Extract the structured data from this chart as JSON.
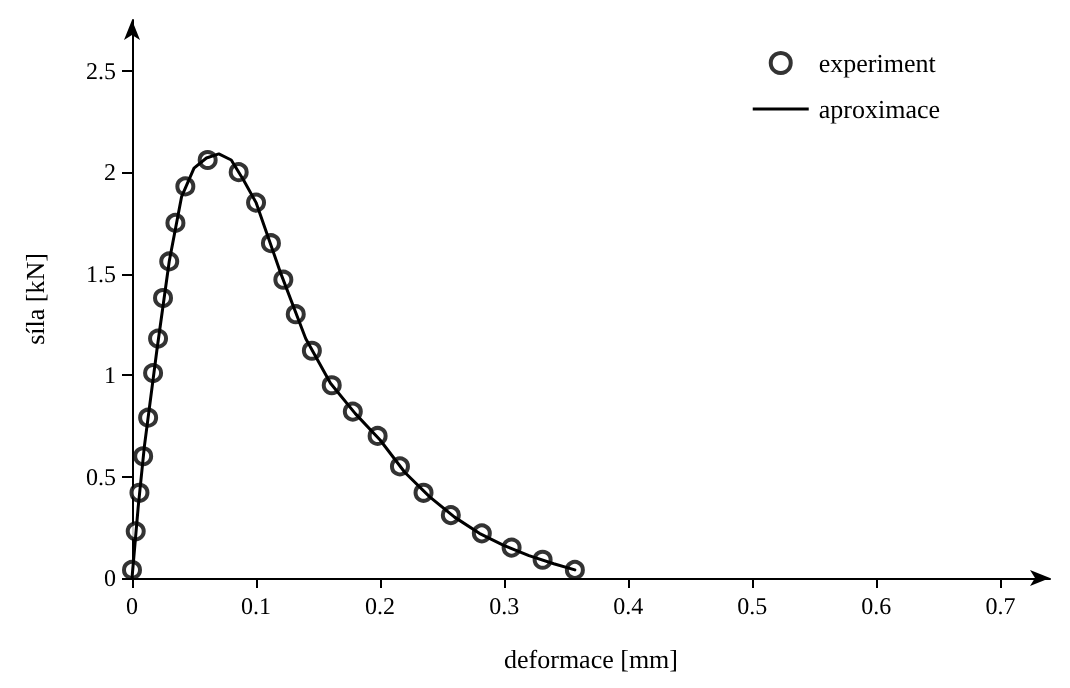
{
  "chart_data": {
    "type": "scatter",
    "xlabel": "deformace [mm]",
    "ylabel": "síla [kN]",
    "xlim": [
      0,
      0.74
    ],
    "xticks": [
      0,
      0.1,
      0.2,
      0.3,
      0.4,
      0.5,
      0.6,
      0.7
    ],
    "ylim": [
      0,
      2.75
    ],
    "yticks": [
      0,
      0.5,
      1,
      1.5,
      2,
      2.5
    ],
    "grid": false,
    "legend": "top right",
    "series": [
      {
        "name": "experiment",
        "marker": "circle",
        "color": "#000000",
        "x": [
          0,
          0.003,
          0.006,
          0.009,
          0.013,
          0.017,
          0.021,
          0.025,
          0.03,
          0.035,
          0.043,
          0.061,
          0.086,
          0.1,
          0.112,
          0.122,
          0.132,
          0.145,
          0.161,
          0.178,
          0.198,
          0.216,
          0.235,
          0.257,
          0.282,
          0.306,
          0.331,
          0.357
        ],
        "values": [
          0.04,
          0.23,
          0.42,
          0.6,
          0.79,
          1.01,
          1.18,
          1.38,
          1.56,
          1.75,
          1.93,
          2.06,
          2.0,
          1.85,
          1.65,
          1.47,
          1.3,
          1.12,
          0.95,
          0.82,
          0.7,
          0.55,
          0.42,
          0.31,
          0.22,
          0.15,
          0.09,
          0.04
        ]
      },
      {
        "name": "aproximace",
        "type": "line",
        "marker": "none",
        "line_style": "solid",
        "color": "#000000",
        "x": [
          0,
          0.005,
          0.01,
          0.02,
          0.03,
          0.04,
          0.05,
          0.06,
          0.07,
          0.08,
          0.09,
          0.1,
          0.12,
          0.14,
          0.16,
          0.18,
          0.2,
          0.22,
          0.24,
          0.26,
          0.28,
          0.3,
          0.32,
          0.34,
          0.357
        ],
        "values": [
          0,
          0.35,
          0.65,
          1.12,
          1.56,
          1.88,
          2.02,
          2.07,
          2.09,
          2.06,
          1.96,
          1.85,
          1.5,
          1.18,
          0.96,
          0.81,
          0.68,
          0.52,
          0.4,
          0.3,
          0.22,
          0.16,
          0.11,
          0.07,
          0.04
        ]
      }
    ]
  }
}
